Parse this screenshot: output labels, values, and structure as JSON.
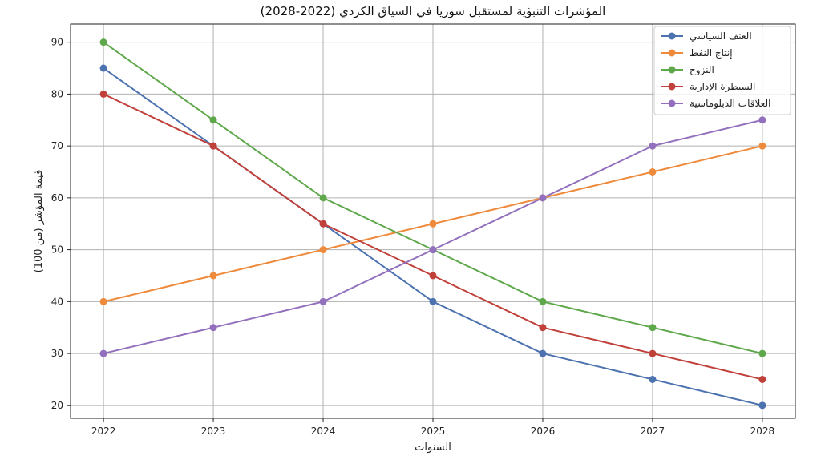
{
  "chart_data": {
    "type": "line",
    "title": "المؤشرات التنبؤية لمستقبل سوريا في السياق الكردي (2022-2028)",
    "xlabel": "السنوات",
    "ylabel": "قيمة المؤشر (من 100)",
    "x": [
      2022,
      2023,
      2024,
      2025,
      2026,
      2027,
      2028
    ],
    "x_tick_labels": [
      "2022",
      "2023",
      "2024",
      "2025",
      "2026",
      "2027",
      "2028"
    ],
    "y_ticks": [
      20,
      30,
      40,
      50,
      60,
      70,
      80,
      90
    ],
    "y_tick_labels": [
      "20",
      "30",
      "40",
      "50",
      "60",
      "70",
      "80",
      "90"
    ],
    "xlim": [
      2021.7,
      2028.3
    ],
    "ylim": [
      17.5,
      93.5
    ],
    "grid": true,
    "legend_position": "top-right",
    "series": [
      {
        "name": "العنف السياسي",
        "color": "#4c72b0",
        "values": [
          85,
          70,
          55,
          40,
          30,
          25,
          20
        ]
      },
      {
        "name": "إنتاج النفط",
        "color": "#ee8a3c",
        "values": [
          40,
          45,
          50,
          55,
          60,
          65,
          70
        ]
      },
      {
        "name": "النزوح",
        "color": "#5ea84b",
        "values": [
          90,
          75,
          60,
          50,
          40,
          35,
          30
        ]
      },
      {
        "name": "السيطرة الإدارية",
        "color": "#c0403a",
        "values": [
          80,
          70,
          55,
          45,
          35,
          30,
          25
        ]
      },
      {
        "name": "العلاقات الدبلوماسية",
        "color": "#9370bd",
        "values": [
          30,
          35,
          40,
          50,
          60,
          70,
          75
        ]
      }
    ]
  }
}
